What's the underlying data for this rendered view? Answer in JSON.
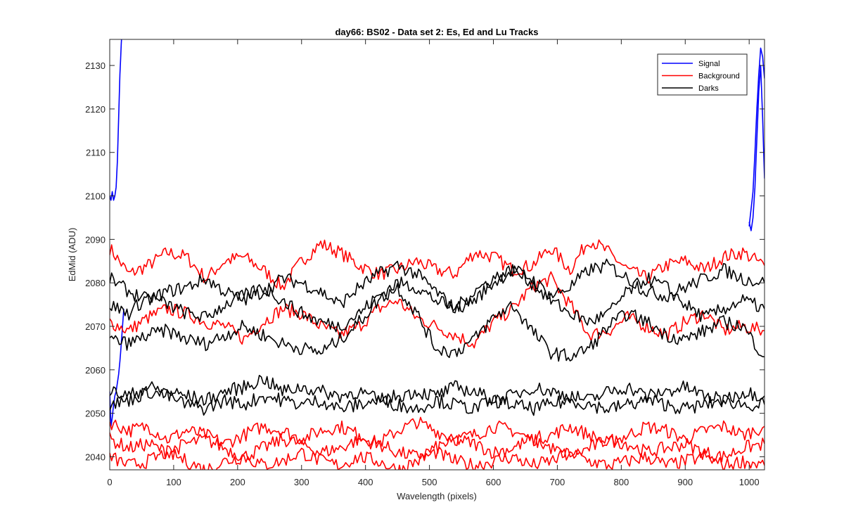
{
  "chart_data": {
    "type": "line",
    "title": "day66: BS02 - Data set 2: Es, Ed and Lu Tracks",
    "xlabel": "Wavelength (pixels)",
    "ylabel": "EdMid (ADU)",
    "xlim": [
      0,
      1024
    ],
    "ylim": [
      2037,
      2136
    ],
    "xticks": [
      0,
      100,
      200,
      300,
      400,
      500,
      600,
      700,
      800,
      900,
      1000
    ],
    "yticks": [
      2040,
      2050,
      2060,
      2070,
      2080,
      2090,
      2100,
      2110,
      2120,
      2130
    ],
    "grid": false,
    "legend_position": "top-right",
    "colors": {
      "Signal": "#0000ff",
      "Background": "#ff0000",
      "Darks": "#000000"
    },
    "series": [
      {
        "name": "Signal",
        "group": "Signal",
        "x": [
          0,
          2,
          4,
          6,
          8,
          10,
          12,
          14,
          16,
          18,
          20
        ],
        "y": [
          2100,
          2099,
          2101,
          2099,
          2100,
          2102,
          2108,
          2118,
          2128,
          2135,
          2140
        ]
      },
      {
        "name": "Signal",
        "group": "Signal",
        "x": [
          0,
          2,
          4,
          6,
          8,
          10,
          12,
          14,
          16,
          18,
          20,
          22
        ],
        "y": [
          2055,
          2047,
          2049,
          2052,
          2054,
          2055,
          2057,
          2059,
          2062,
          2066,
          2070,
          2074
        ]
      },
      {
        "name": "Signal",
        "group": "Signal",
        "x": [
          1000,
          1003,
          1006,
          1009,
          1012,
          1015,
          1018,
          1021,
          1024
        ],
        "y": [
          2093,
          2097,
          2101,
          2110,
          2120,
          2128,
          2134,
          2132,
          2127
        ]
      },
      {
        "name": "Signal",
        "group": "Signal",
        "x": [
          1000,
          1003,
          1006,
          1009,
          1012,
          1015,
          1018,
          1021,
          1024
        ],
        "y": [
          2094,
          2092,
          2095,
          2102,
          2113,
          2124,
          2130,
          2118,
          2104
        ]
      },
      {
        "name": "Background",
        "group": "Background",
        "x": [
          0,
          30,
          60,
          90,
          120,
          150,
          180,
          210,
          240,
          270,
          300,
          330,
          360,
          390,
          420,
          450,
          480,
          510,
          540,
          570,
          600,
          630,
          660,
          690,
          720,
          750,
          780,
          810,
          840,
          870,
          900,
          930,
          960,
          990,
          1024
        ],
        "y": [
          2088,
          2082,
          2084,
          2087,
          2086,
          2081,
          2085,
          2086,
          2083,
          2079,
          2085,
          2089,
          2087,
          2084,
          2082,
          2083,
          2085,
          2083,
          2082,
          2087,
          2086,
          2083,
          2084,
          2088,
          2083,
          2090,
          2087,
          2083,
          2081,
          2084,
          2085,
          2083,
          2086,
          2087,
          2084
        ]
      },
      {
        "name": "Background",
        "group": "Background",
        "x": [
          0,
          30,
          60,
          90,
          120,
          150,
          180,
          210,
          240,
          270,
          300,
          330,
          360,
          390,
          420,
          450,
          480,
          510,
          540,
          570,
          600,
          630,
          660,
          690,
          720,
          750,
          780,
          810,
          840,
          870,
          900,
          930,
          960,
          990,
          1024
        ],
        "y": [
          2071,
          2069,
          2072,
          2074,
          2073,
          2071,
          2070,
          2067,
          2071,
          2074,
          2073,
          2070,
          2068,
          2070,
          2074,
          2076,
          2072,
          2070,
          2068,
          2066,
          2071,
          2074,
          2079,
          2081,
          2075,
          2068,
          2069,
          2072,
          2070,
          2068,
          2071,
          2073,
          2069,
          2070,
          2069
        ]
      },
      {
        "name": "Background",
        "group": "Background",
        "x": [
          0,
          30,
          60,
          90,
          120,
          150,
          180,
          210,
          240,
          270,
          300,
          330,
          360,
          390,
          420,
          450,
          480,
          510,
          540,
          570,
          600,
          630,
          660,
          690,
          720,
          750,
          780,
          810,
          840,
          870,
          900,
          930,
          960,
          990,
          1024
        ],
        "y": [
          2048,
          2046,
          2047,
          2044,
          2046,
          2045,
          2043,
          2045,
          2047,
          2046,
          2044,
          2046,
          2047,
          2045,
          2043,
          2046,
          2048,
          2046,
          2044,
          2045,
          2047,
          2046,
          2044,
          2045,
          2047,
          2045,
          2043,
          2045,
          2047,
          2046,
          2044,
          2046,
          2047,
          2045,
          2047
        ]
      },
      {
        "name": "Background",
        "group": "Background",
        "x": [
          0,
          30,
          60,
          90,
          120,
          150,
          180,
          210,
          240,
          270,
          300,
          330,
          360,
          390,
          420,
          450,
          480,
          510,
          540,
          570,
          600,
          630,
          660,
          690,
          720,
          750,
          780,
          810,
          840,
          870,
          900,
          930,
          960,
          990,
          1024
        ],
        "y": [
          2044,
          2042,
          2043,
          2041,
          2043,
          2044,
          2042,
          2040,
          2042,
          2044,
          2043,
          2041,
          2042,
          2044,
          2043,
          2041,
          2040,
          2042,
          2044,
          2043,
          2041,
          2042,
          2044,
          2042,
          2040,
          2042,
          2044,
          2043,
          2041,
          2042,
          2043,
          2041,
          2040,
          2042,
          2043
        ]
      },
      {
        "name": "Background",
        "group": "Background",
        "x": [
          0,
          30,
          60,
          90,
          120,
          150,
          180,
          210,
          240,
          270,
          300,
          330,
          360,
          390,
          420,
          450,
          480,
          510,
          540,
          570,
          600,
          630,
          660,
          690,
          720,
          750,
          780,
          810,
          840,
          870,
          900,
          930,
          960,
          990,
          1024
        ],
        "y": [
          2040,
          2038,
          2039,
          2041,
          2039,
          2037,
          2039,
          2040,
          2038,
          2039,
          2041,
          2039,
          2038,
          2040,
          2039,
          2037,
          2039,
          2041,
          2039,
          2038,
          2039,
          2040,
          2038,
          2039,
          2041,
          2039,
          2038,
          2039,
          2040,
          2038,
          2039,
          2040,
          2038,
          2039,
          2038
        ]
      },
      {
        "name": "Darks",
        "group": "Darks",
        "x": [
          0,
          30,
          60,
          90,
          120,
          150,
          180,
          210,
          240,
          270,
          300,
          330,
          360,
          390,
          420,
          450,
          480,
          510,
          540,
          570,
          600,
          630,
          660,
          690,
          720,
          750,
          780,
          810,
          840,
          870,
          900,
          930,
          960,
          990,
          1024
        ],
        "y": [
          2081,
          2078,
          2076,
          2078,
          2079,
          2081,
          2078,
          2076,
          2078,
          2081,
          2080,
          2078,
          2075,
          2079,
          2082,
          2084,
          2082,
          2078,
          2074,
          2076,
          2080,
          2083,
          2081,
          2077,
          2079,
          2083,
          2084,
          2081,
          2078,
          2077,
          2079,
          2081,
          2083,
          2081,
          2080
        ]
      },
      {
        "name": "Darks",
        "group": "Darks",
        "x": [
          0,
          30,
          60,
          90,
          120,
          150,
          180,
          210,
          240,
          270,
          300,
          330,
          360,
          390,
          420,
          450,
          480,
          510,
          540,
          570,
          600,
          630,
          660,
          690,
          720,
          750,
          780,
          810,
          840,
          870,
          900,
          930,
          960,
          990,
          1024
        ],
        "y": [
          2075,
          2073,
          2077,
          2075,
          2073,
          2072,
          2075,
          2077,
          2079,
          2076,
          2073,
          2071,
          2070,
          2073,
          2077,
          2080,
          2079,
          2076,
          2074,
          2078,
          2081,
          2083,
          2080,
          2076,
          2073,
          2071,
          2073,
          2078,
          2081,
          2079,
          2075,
          2072,
          2074,
          2076,
          2074
        ]
      },
      {
        "name": "Darks",
        "group": "Darks",
        "x": [
          0,
          30,
          60,
          90,
          120,
          150,
          180,
          210,
          240,
          270,
          300,
          330,
          360,
          390,
          420,
          450,
          480,
          510,
          540,
          570,
          600,
          630,
          660,
          690,
          720,
          750,
          780,
          810,
          840,
          870,
          900,
          930,
          960,
          990,
          1024
        ],
        "y": [
          2067,
          2066,
          2068,
          2069,
          2067,
          2066,
          2068,
          2070,
          2068,
          2066,
          2065,
          2064,
          2067,
          2071,
          2076,
          2079,
          2073,
          2065,
          2064,
          2067,
          2072,
          2075,
          2069,
          2064,
          2063,
          2065,
          2070,
          2073,
          2071,
          2068,
          2067,
          2069,
          2071,
          2070,
          2063
        ]
      },
      {
        "name": "Darks",
        "group": "Darks",
        "x": [
          0,
          30,
          60,
          90,
          120,
          150,
          180,
          210,
          240,
          270,
          300,
          330,
          360,
          390,
          420,
          450,
          480,
          510,
          540,
          570,
          600,
          630,
          660,
          690,
          720,
          750,
          780,
          810,
          840,
          870,
          900,
          930,
          960,
          990,
          1024
        ],
        "y": [
          2055,
          2054,
          2056,
          2055,
          2054,
          2053,
          2055,
          2056,
          2058,
          2055,
          2056,
          2055,
          2054,
          2055,
          2053,
          2054,
          2055,
          2054,
          2056,
          2055,
          2053,
          2054,
          2056,
          2055,
          2054,
          2053,
          2055,
          2056,
          2054,
          2055,
          2056,
          2054,
          2053,
          2055,
          2054
        ]
      },
      {
        "name": "Darks",
        "group": "Darks",
        "x": [
          0,
          30,
          60,
          90,
          120,
          150,
          180,
          210,
          240,
          270,
          300,
          330,
          360,
          390,
          420,
          450,
          480,
          510,
          540,
          570,
          600,
          630,
          660,
          690,
          720,
          750,
          780,
          810,
          840,
          870,
          900,
          930,
          960,
          990,
          1024
        ],
        "y": [
          2052,
          2053,
          2055,
          2054,
          2052,
          2051,
          2053,
          2052,
          2054,
          2053,
          2052,
          2053,
          2051,
          2052,
          2053,
          2052,
          2051,
          2053,
          2052,
          2051,
          2053,
          2052,
          2051,
          2052,
          2053,
          2052,
          2051,
          2052,
          2053,
          2052,
          2051,
          2052,
          2053,
          2052,
          2052
        ]
      }
    ]
  }
}
